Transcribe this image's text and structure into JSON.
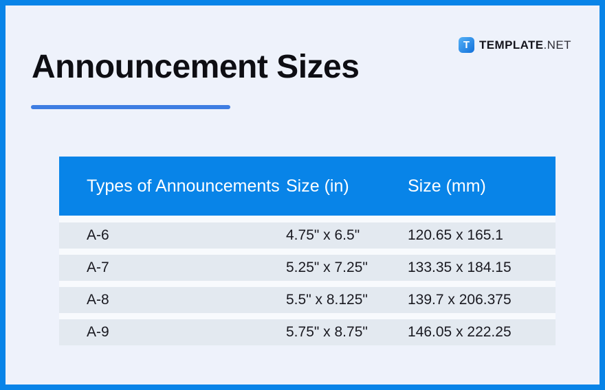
{
  "page": {
    "title": "Announcement Sizes",
    "background_color": "#eef2fb",
    "border_color": "#0884e8",
    "underline_color": "#3e7de2"
  },
  "logo": {
    "icon_letter": "T",
    "brand_bold": "TEMPLATE",
    "brand_light": ".NET"
  },
  "table": {
    "header_bg_color": "#0884e8",
    "row_bg_color": "#e3e9f0",
    "columns": {
      "type": "Types of Announcements",
      "size_in": "Size (in)",
      "size_mm": "Size (mm)"
    },
    "rows": [
      {
        "type": "A-6",
        "size_in": "4.75\" x 6.5\"",
        "size_mm": "120.65 x 165.1"
      },
      {
        "type": "A-7",
        "size_in": "5.25\" x 7.25\"",
        "size_mm": "133.35 x 184.15"
      },
      {
        "type": "A-8",
        "size_in": "5.5\" x 8.125\"",
        "size_mm": "139.7 x 206.375"
      },
      {
        "type": "A-9",
        "size_in": "5.75\" x 8.75\"",
        "size_mm": "146.05 x 222.25"
      }
    ]
  }
}
